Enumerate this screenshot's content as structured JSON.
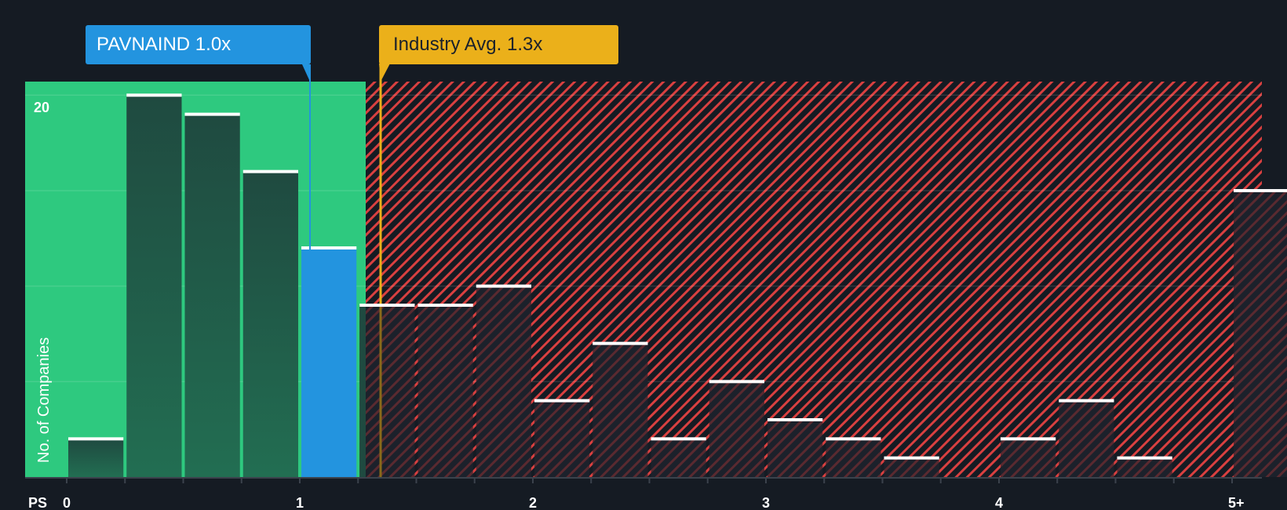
{
  "callouts": {
    "company": {
      "label": "PAVNAIND 1.0x",
      "value": 1.0,
      "color": "#2394df"
    },
    "industry": {
      "label": "Industry Avg. 1.3x",
      "value": 1.3,
      "color": "#ebb01a"
    }
  },
  "axis": {
    "x_label": "PS",
    "y_label": "No. of Companies",
    "x_ticks": [
      "0",
      "1",
      "2",
      "3",
      "4",
      "5+"
    ],
    "y_tick_label": "20"
  },
  "colors": {
    "background": "#151b23",
    "undervalued_zone": "#2ec97f",
    "overvalued_hatch": "#d94040",
    "bar_green": "#1f4a3f",
    "bar_dark": "#1c212b",
    "highlight_bar": "#2394df",
    "bar_cap": "#ffffff"
  },
  "chart_data": {
    "type": "bar",
    "title": "",
    "xlabel": "PS",
    "ylabel": "No. of Companies",
    "ylim": [
      0,
      20
    ],
    "y_gridlines": [
      5,
      10,
      15,
      20
    ],
    "x_tick_labels": [
      "0",
      "1",
      "2",
      "3",
      "4",
      "5+"
    ],
    "bin_width": 0.25,
    "categories": [
      "0-0.25",
      "0.25-0.5",
      "0.5-0.75",
      "0.75-1.0",
      "1.0-1.25",
      "1.25-1.5",
      "1.5-1.75",
      "1.75-2.0",
      "2.0-2.25",
      "2.25-2.5",
      "2.5-2.75",
      "2.75-3.0",
      "3.0-3.25",
      "3.25-3.5",
      "3.5-3.75",
      "3.75-4.0",
      "4.0-4.25",
      "4.25-4.5",
      "4.5-4.75",
      "4.75-5.0",
      "5+"
    ],
    "values": [
      2,
      20,
      19,
      16,
      12,
      9,
      9,
      10,
      4,
      7,
      2,
      5,
      3,
      2,
      1,
      0,
      2,
      4,
      1,
      0,
      15
    ],
    "highlight_bin": "1.0-1.25",
    "annotations": [
      {
        "label": "PAVNAIND 1.0x",
        "x": 1.0
      },
      {
        "label": "Industry Avg. 1.3x",
        "x": 1.3
      }
    ],
    "zones": [
      {
        "name": "below industry average",
        "from": 0,
        "to": 1.3,
        "color": "#2ec97f"
      },
      {
        "name": "above industry average",
        "from": 1.3,
        "to": "5+",
        "color": "#d94040",
        "pattern": "hatch"
      }
    ],
    "legend": "none"
  }
}
